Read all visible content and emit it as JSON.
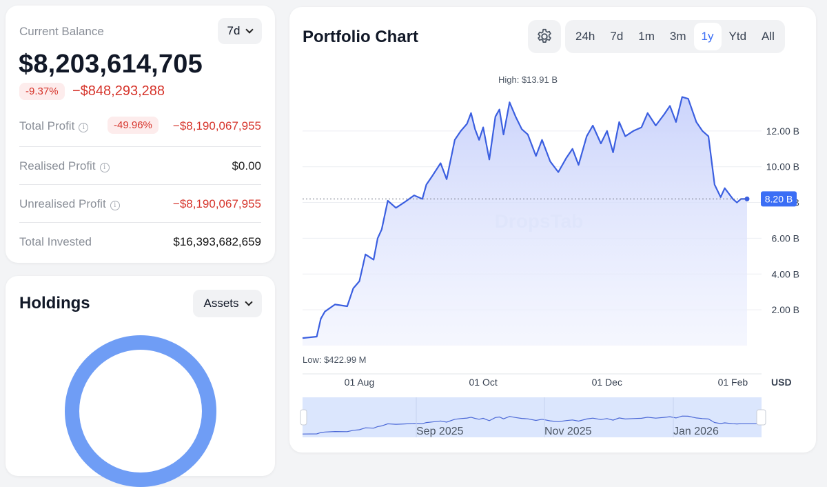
{
  "balance": {
    "label": "Current Balance",
    "period": "7d",
    "amount": "$8,203,614,705",
    "change_pct": "-9.37%",
    "change_abs": "−$848,293,288"
  },
  "stats": {
    "total_profit": {
      "label": "Total Profit",
      "pct": "-49.96%",
      "value": "−$8,190,067,955"
    },
    "realised_profit": {
      "label": "Realised Profit",
      "value": "$0.00"
    },
    "unrealised_profit": {
      "label": "Unrealised Profit",
      "value": "−$8,190,067,955"
    },
    "total_invested": {
      "label": "Total Invested",
      "value": "$16,393,682,659"
    }
  },
  "holdings": {
    "title": "Holdings",
    "view": "Assets",
    "ring_color": "#6f9df5"
  },
  "chart": {
    "title": "Portfolio Chart",
    "tabs": [
      "24h",
      "7d",
      "1m",
      "3m",
      "1y",
      "Ytd",
      "All"
    ],
    "active_tab": "1y",
    "high_label": "High: $13.91 B",
    "low_label": "Low: $422.99 M",
    "current_label": "8.20 B",
    "currency": "USD",
    "watermark": "DropsTab",
    "accent": "#3b5fe0",
    "navigator_labels": [
      "Sep 2025",
      "Nov 2025",
      "Jan 2026"
    ]
  },
  "chart_data": {
    "type": "area",
    "y_unit": "B USD",
    "ylim": [
      0,
      14.5
    ],
    "y_ticks": [
      "2.00 B",
      "4.00 B",
      "6.00 B",
      "8.00 B",
      "10.00 B",
      "12.00 B"
    ],
    "y_tick_values": [
      2,
      4,
      6,
      8,
      10,
      12
    ],
    "x_ticks": [
      "01 Aug",
      "01 Oct",
      "01 Dec",
      "01 Feb"
    ],
    "x_tick_values": [
      "2025-08-01",
      "2025-10-01",
      "2025-12-01",
      "2026-02-01"
    ],
    "grid": true,
    "x_range": [
      "2025-07-04",
      "2026-02-08"
    ],
    "series": [
      {
        "x": [
          "2025-07-04",
          "2025-07-11",
          "2025-07-13",
          "2025-07-15",
          "2025-07-20",
          "2025-07-26",
          "2025-07-29",
          "2025-08-01",
          "2025-08-04",
          "2025-08-08",
          "2025-08-10",
          "2025-08-12",
          "2025-08-15",
          "2025-08-19",
          "2025-08-23",
          "2025-08-28",
          "2025-09-01",
          "2025-09-03",
          "2025-09-06",
          "2025-09-10",
          "2025-09-13",
          "2025-09-17",
          "2025-09-20",
          "2025-09-23",
          "2025-09-25",
          "2025-09-27",
          "2025-09-29",
          "2025-10-01",
          "2025-10-04",
          "2025-10-07",
          "2025-10-09",
          "2025-10-11",
          "2025-10-14",
          "2025-10-17",
          "2025-10-20",
          "2025-10-23",
          "2025-10-27",
          "2025-10-30",
          "2025-11-03",
          "2025-11-07",
          "2025-11-11",
          "2025-11-14",
          "2025-11-17",
          "2025-11-21",
          "2025-11-24",
          "2025-11-28",
          "2025-12-01",
          "2025-12-04",
          "2025-12-07",
          "2025-12-10",
          "2025-12-14",
          "2025-12-18",
          "2025-12-21",
          "2025-12-25",
          "2025-12-29",
          "2026-01-01",
          "2026-01-04",
          "2026-01-07",
          "2026-01-10",
          "2026-01-14",
          "2026-01-17",
          "2026-01-20",
          "2026-01-23",
          "2026-01-26",
          "2026-01-28",
          "2026-01-30",
          "2026-02-01",
          "2026-02-03",
          "2026-02-05",
          "2026-02-08"
        ],
        "values": [
          0.42,
          0.5,
          1.5,
          1.9,
          2.3,
          2.2,
          3.2,
          3.6,
          5.1,
          4.8,
          6.0,
          6.5,
          8.1,
          7.7,
          8.0,
          8.4,
          8.2,
          9.0,
          9.5,
          10.2,
          9.3,
          11.5,
          12.0,
          12.4,
          13.0,
          12.1,
          11.5,
          12.2,
          10.4,
          12.8,
          13.2,
          11.8,
          13.6,
          12.8,
          12.1,
          11.8,
          10.6,
          11.5,
          10.3,
          9.7,
          10.5,
          11.0,
          10.1,
          11.7,
          12.3,
          11.3,
          12.0,
          10.8,
          12.5,
          11.7,
          12.0,
          12.2,
          13.0,
          12.3,
          12.9,
          13.4,
          12.5,
          13.9,
          13.8,
          12.5,
          12.0,
          11.7,
          9.0,
          8.3,
          8.8,
          8.5,
          8.2,
          8.0,
          8.2,
          8.2
        ]
      }
    ]
  }
}
